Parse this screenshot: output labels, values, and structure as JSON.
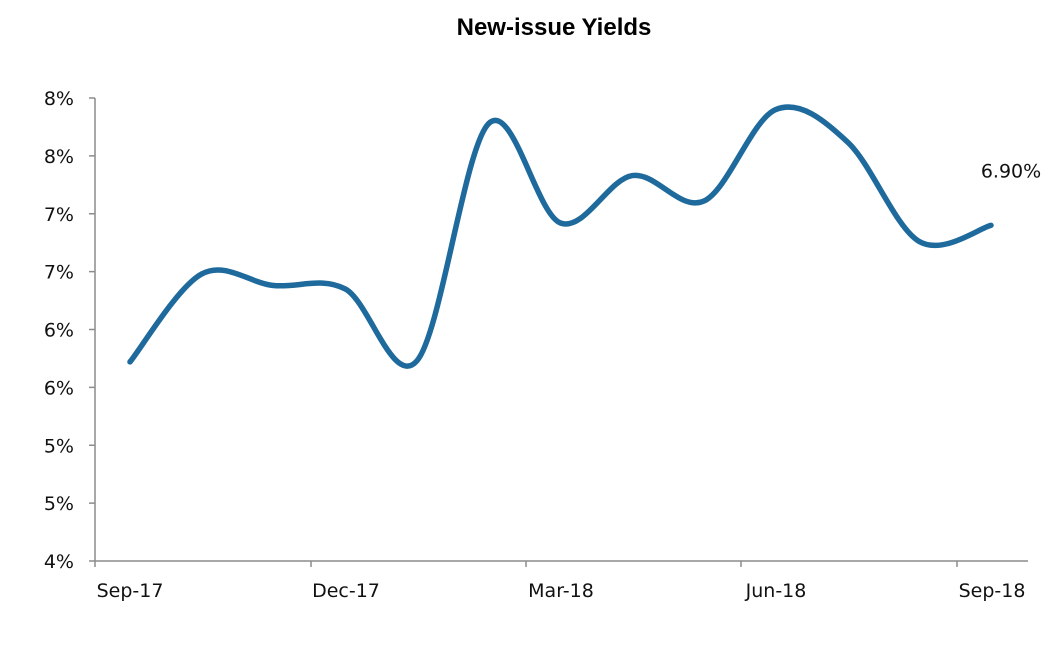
{
  "chart_data": {
    "type": "line",
    "title": "New-issue Yields",
    "xlabel": "",
    "ylabel": "",
    "x_tick_labels": [
      "Sep-17",
      "Dec-17",
      "Mar-18",
      "Jun-18",
      "Sep-18"
    ],
    "y_tick_labels": [
      "4%",
      "5%",
      "5%",
      "6%",
      "6%",
      "7%",
      "7%",
      "8%",
      "8%"
    ],
    "ylim": [
      4.0,
      8.0
    ],
    "grid": false,
    "legend": "none",
    "series": [
      {
        "color": "#1f6a9c",
        "points": [
          {
            "x": "2017-09-01",
            "y": 5.72
          },
          {
            "x": "2017-10-01",
            "y": 6.48
          },
          {
            "x": "2017-11-01",
            "y": 6.38
          },
          {
            "x": "2017-12-01",
            "y": 6.35
          },
          {
            "x": "2018-01-01",
            "y": 5.73
          },
          {
            "x": "2018-02-01",
            "y": 7.78
          },
          {
            "x": "2018-03-01",
            "y": 6.92
          },
          {
            "x": "2018-04-01",
            "y": 7.33
          },
          {
            "x": "2018-05-01",
            "y": 7.11
          },
          {
            "x": "2018-06-01",
            "y": 7.9
          },
          {
            "x": "2018-07-01",
            "y": 7.62
          },
          {
            "x": "2018-08-01",
            "y": 6.76
          },
          {
            "x": "2018-09-01",
            "y": 6.9
          }
        ]
      }
    ],
    "annotations": [
      {
        "x": "2018-09-01",
        "y": 6.9,
        "text": "6.90%"
      }
    ]
  }
}
